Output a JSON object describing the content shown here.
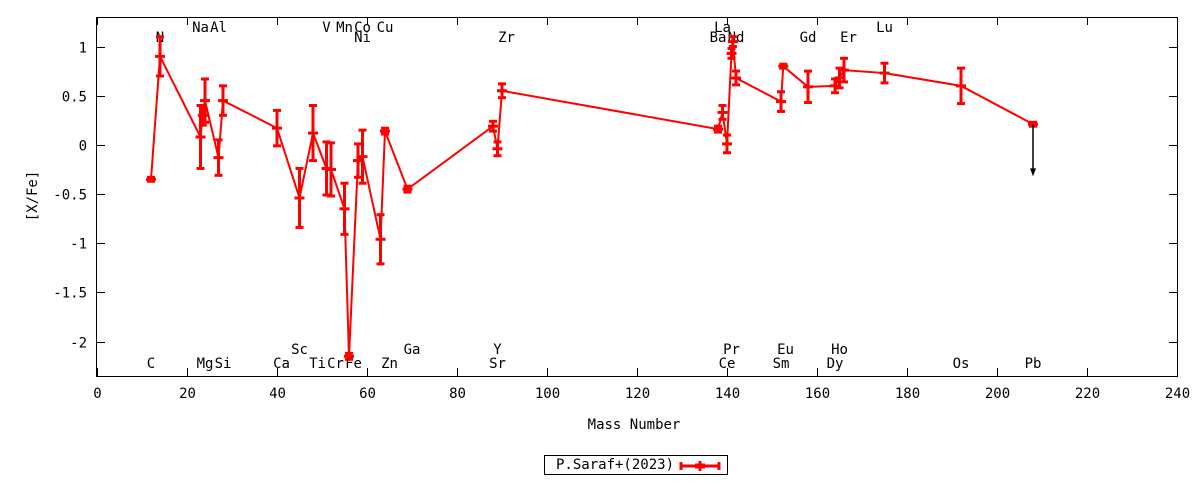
{
  "chart_data": {
    "type": "line",
    "title": "",
    "xlabel": "Mass Number",
    "ylabel": "[X/Fe]",
    "xlim": [
      0,
      240
    ],
    "ylim": [
      -2.35,
      1.3
    ],
    "xticks": [
      0,
      20,
      40,
      60,
      80,
      100,
      120,
      140,
      160,
      180,
      200,
      220,
      240
    ],
    "yticks": [
      -2,
      -1.5,
      -1,
      -0.5,
      0,
      0.5,
      1
    ],
    "ytick_labels": [
      "-2",
      "-1.5",
      "-1",
      "-0.5",
      "0",
      "0.5",
      "1"
    ],
    "grid": false,
    "legend_position": "bottom-center",
    "series": [
      {
        "name": "P.Saraf+(2023)",
        "color": "#ff0000",
        "points": [
          {
            "x": 12,
            "y": -0.35,
            "err": 0.02
          },
          {
            "x": 14,
            "y": 0.9,
            "err": 0.2
          },
          {
            "x": 23,
            "y": 0.08,
            "err": 0.32
          },
          {
            "x": 23.5,
            "y": 0.3,
            "err": 0.1
          },
          {
            "x": 24,
            "y": 0.45,
            "err": 0.22
          },
          {
            "x": 27,
            "y": -0.13,
            "err": 0.18
          },
          {
            "x": 28,
            "y": 0.45,
            "err": 0.15
          },
          {
            "x": 40,
            "y": 0.17,
            "err": 0.18
          },
          {
            "x": 45,
            "y": -0.54,
            "err": 0.3
          },
          {
            "x": 48,
            "y": 0.12,
            "err": 0.28
          },
          {
            "x": 51,
            "y": -0.24,
            "err": 0.27
          },
          {
            "x": 52,
            "y": -0.25,
            "err": 0.27
          },
          {
            "x": 55,
            "y": -0.65,
            "err": 0.26
          },
          {
            "x": 56,
            "y": -2.15,
            "err": 0.03
          },
          {
            "x": 58,
            "y": -0.16,
            "err": 0.17
          },
          {
            "x": 59,
            "y": -0.12,
            "err": 0.27
          },
          {
            "x": 63,
            "y": -0.96,
            "err": 0.25
          },
          {
            "x": 64,
            "y": 0.14,
            "err": 0.03
          },
          {
            "x": 69,
            "y": -0.45,
            "err": 0.03
          },
          {
            "x": 88,
            "y": 0.19,
            "err": 0.05
          },
          {
            "x": 89,
            "y": -0.04,
            "err": 0.07
          },
          {
            "x": 90,
            "y": 0.55,
            "err": 0.07
          },
          {
            "x": 138,
            "y": 0.16,
            "err": 0.03
          },
          {
            "x": 139,
            "y": 0.33,
            "err": 0.07
          },
          {
            "x": 140,
            "y": 0.01,
            "err": 0.09
          },
          {
            "x": 141,
            "y": 0.93,
            "err": 0.05
          },
          {
            "x": 141.3,
            "y": 1.05,
            "err": 0.05
          },
          {
            "x": 142,
            "y": 0.68,
            "err": 0.07
          },
          {
            "x": 152,
            "y": 0.44,
            "err": 0.1
          },
          {
            "x": 152.5,
            "y": 0.8,
            "err": 0.02
          },
          {
            "x": 158,
            "y": 0.59,
            "err": 0.16
          },
          {
            "x": 164,
            "y": 0.6,
            "err": 0.07
          },
          {
            "x": 165,
            "y": 0.68,
            "err": 0.1
          },
          {
            "x": 166,
            "y": 0.76,
            "err": 0.12
          },
          {
            "x": 175,
            "y": 0.73,
            "err": 0.1
          },
          {
            "x": 192,
            "y": 0.6,
            "err": 0.18
          },
          {
            "x": 208,
            "y": 0.21,
            "err": 0.02,
            "upper_limit": true,
            "arrow_to": -0.3
          }
        ]
      }
    ],
    "element_labels": [
      {
        "text": "N",
        "x": 14,
        "row": "top2"
      },
      {
        "text": "Na",
        "x": 23,
        "row": "top1"
      },
      {
        "text": "Al",
        "x": 27,
        "row": "top1"
      },
      {
        "text": "V",
        "x": 51,
        "row": "top1"
      },
      {
        "text": "Mn",
        "x": 55,
        "row": "top1"
      },
      {
        "text": "Co",
        "x": 59,
        "row": "top1"
      },
      {
        "text": "Cu",
        "x": 64,
        "row": "top1"
      },
      {
        "text": "Ni",
        "x": 59,
        "row": "top2"
      },
      {
        "text": "Zr",
        "x": 91,
        "row": "top2"
      },
      {
        "text": "La",
        "x": 139,
        "row": "top1"
      },
      {
        "text": "Ba",
        "x": 138,
        "row": "top2"
      },
      {
        "text": "Nd",
        "x": 142,
        "row": "top2"
      },
      {
        "text": "Gd",
        "x": 158,
        "row": "top2"
      },
      {
        "text": "Er",
        "x": 167,
        "row": "top2"
      },
      {
        "text": "Lu",
        "x": 175,
        "row": "top1"
      },
      {
        "text": "Sc",
        "x": 45,
        "row": "bot1"
      },
      {
        "text": "Ga",
        "x": 70,
        "row": "bot1"
      },
      {
        "text": "Y",
        "x": 89,
        "row": "bot1"
      },
      {
        "text": "Pr",
        "x": 141,
        "row": "bot1"
      },
      {
        "text": "Eu",
        "x": 153,
        "row": "bot1"
      },
      {
        "text": "Ho",
        "x": 165,
        "row": "bot1"
      },
      {
        "text": "C",
        "x": 12,
        "row": "bot2"
      },
      {
        "text": "Mg",
        "x": 24,
        "row": "bot2"
      },
      {
        "text": "Si",
        "x": 28,
        "row": "bot2"
      },
      {
        "text": "Ca",
        "x": 41,
        "row": "bot2"
      },
      {
        "text": "Ti",
        "x": 49,
        "row": "bot2"
      },
      {
        "text": "Cr",
        "x": 53,
        "row": "bot2"
      },
      {
        "text": "Fe",
        "x": 57,
        "row": "bot2"
      },
      {
        "text": "Zn",
        "x": 65,
        "row": "bot2"
      },
      {
        "text": "Sr",
        "x": 89,
        "row": "bot2"
      },
      {
        "text": "Ce",
        "x": 140,
        "row": "bot2"
      },
      {
        "text": "Sm",
        "x": 152,
        "row": "bot2"
      },
      {
        "text": "Dy",
        "x": 164,
        "row": "bot2"
      },
      {
        "text": "Os",
        "x": 192,
        "row": "bot2"
      },
      {
        "text": "Pb",
        "x": 208,
        "row": "bot2"
      }
    ]
  },
  "legend": {
    "label": "P.Saraf+(2023)"
  }
}
